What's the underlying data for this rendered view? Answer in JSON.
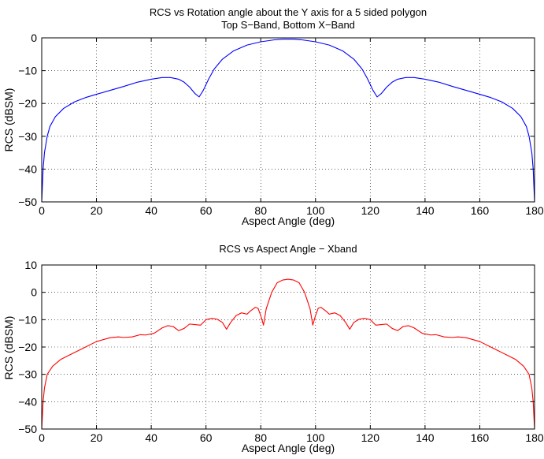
{
  "colors": {
    "s_band": "#0000ff",
    "x_band": "#ff0000",
    "axes": "#000000",
    "grid": "#000000",
    "background": "#ffffff"
  },
  "chart_data": [
    {
      "type": "line",
      "title_lines": [
        "RCS vs Rotation angle about the Y axis for a 5 sided polygon",
        "Top S−Band, Bottom X−Band"
      ],
      "xlabel": "Aspect Angle (deg)",
      "ylabel": "RCS (dBSM)",
      "xlim": [
        0,
        180
      ],
      "ylim": [
        -50,
        0
      ],
      "xticks": [
        0,
        20,
        40,
        60,
        80,
        100,
        120,
        140,
        160,
        180
      ],
      "yticks": [
        -50,
        -40,
        -30,
        -20,
        -10,
        0
      ],
      "grid": true,
      "series": [
        {
          "color": "#0000ff",
          "x": [
            0,
            0.5,
            1,
            2,
            3,
            5,
            8,
            12,
            16,
            20,
            25,
            30,
            35,
            40,
            44,
            47,
            50,
            52,
            54,
            56,
            57.5,
            59,
            61,
            63,
            66,
            70,
            75,
            80,
            85,
            88,
            90,
            92,
            95,
            100,
            105,
            110,
            114,
            117,
            119,
            121,
            122.5,
            124,
            126,
            128,
            130,
            133,
            136,
            140,
            145,
            150,
            155,
            160,
            164,
            168,
            172,
            175,
            177,
            178,
            179,
            179.5,
            180
          ],
          "y": [
            -50,
            -40,
            -35,
            -30,
            -27,
            -24,
            -21.5,
            -19.5,
            -18.2,
            -17.2,
            -16,
            -14.8,
            -13.5,
            -12.6,
            -12.1,
            -12.1,
            -12.6,
            -13.5,
            -15,
            -17,
            -18,
            -16,
            -12.5,
            -9.5,
            -6.5,
            -4,
            -2.2,
            -1.2,
            -0.6,
            -0.4,
            -0.4,
            -0.4,
            -0.6,
            -1.2,
            -2.2,
            -4,
            -6.5,
            -9.5,
            -12.5,
            -16,
            -18,
            -17,
            -15,
            -13.5,
            -12.6,
            -12.1,
            -12.1,
            -12.6,
            -13.5,
            -14.8,
            -16,
            -17.2,
            -18.2,
            -19.5,
            -21.5,
            -24,
            -27,
            -30,
            -35,
            -40,
            -50
          ]
        }
      ]
    },
    {
      "type": "line",
      "title_lines": [
        "RCS vs Aspect Angle − Xband"
      ],
      "xlabel": "Aspect Angle (deg)",
      "ylabel": "RCS (dBSM)",
      "xlim": [
        0,
        180
      ],
      "ylim": [
        -50,
        10
      ],
      "xticks": [
        0,
        20,
        40,
        60,
        80,
        100,
        120,
        140,
        160,
        180
      ],
      "yticks": [
        -50,
        -40,
        -30,
        -20,
        -10,
        0,
        10
      ],
      "grid": true,
      "series": [
        {
          "color": "#ff0000",
          "x": [
            0,
            0.5,
            1,
            2,
            4,
            7,
            10,
            15,
            20,
            25,
            28,
            30,
            33,
            36,
            38,
            41,
            44,
            46,
            48,
            50,
            52,
            54,
            56,
            58,
            60,
            62,
            64,
            66,
            67.5,
            69,
            71,
            73,
            75,
            76,
            78,
            79,
            80,
            81,
            82,
            84,
            86,
            88,
            90,
            92,
            94,
            96,
            98,
            99,
            100,
            101,
            102,
            104,
            105,
            107,
            109,
            111,
            112.5,
            114,
            116,
            118,
            120,
            122,
            124,
            126,
            128,
            130,
            132,
            134,
            136,
            139,
            142,
            144,
            147,
            150,
            152,
            155,
            160,
            165,
            170,
            173,
            176,
            178,
            179,
            179.5,
            180
          ],
          "y": [
            -50,
            -40,
            -35,
            -30,
            -27,
            -24.5,
            -23,
            -20.5,
            -18,
            -16.6,
            -16.3,
            -16.5,
            -16.3,
            -15.5,
            -15.6,
            -15,
            -13,
            -12.2,
            -12.5,
            -14,
            -13.2,
            -11.6,
            -11.8,
            -12,
            -10,
            -9.5,
            -9.8,
            -11,
            -13.5,
            -11,
            -8.5,
            -7.5,
            -8,
            -7,
            -5.5,
            -5.8,
            -8.5,
            -12,
            -6,
            0,
            3.5,
            4.5,
            4.8,
            4.5,
            3.5,
            0,
            -6,
            -12,
            -8.5,
            -5.8,
            -5.5,
            -7,
            -8,
            -7.5,
            -8.5,
            -11,
            -13.5,
            -11,
            -9.8,
            -9.5,
            -10,
            -12,
            -11.8,
            -11.6,
            -13.2,
            -14,
            -12.5,
            -12.2,
            -13,
            -15,
            -15.6,
            -15.5,
            -16.3,
            -16.5,
            -16.3,
            -16.6,
            -18,
            -20.5,
            -23,
            -24.5,
            -27,
            -30,
            -35,
            -40,
            -50
          ]
        }
      ]
    }
  ]
}
